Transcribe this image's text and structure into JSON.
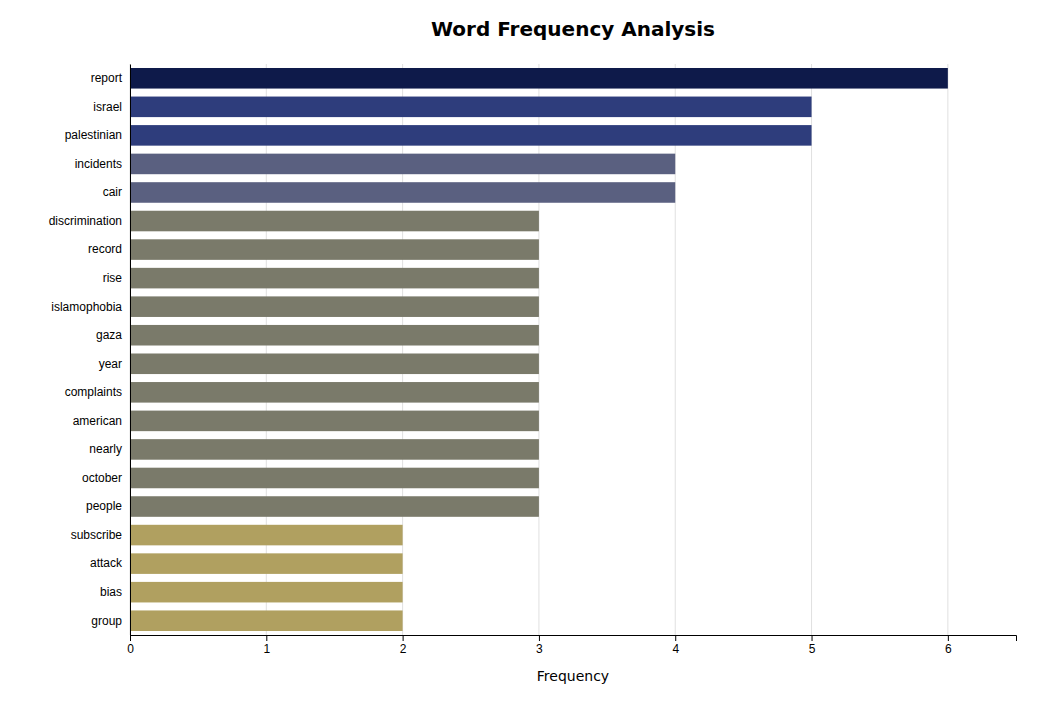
{
  "chart_data": {
    "type": "bar",
    "orientation": "horizontal",
    "title": "Word Frequency Analysis",
    "xlabel": "Frequency",
    "categories": [
      "group",
      "bias",
      "attack",
      "subscribe",
      "people",
      "october",
      "nearly",
      "american",
      "complaints",
      "year",
      "gaza",
      "islamophobia",
      "rise",
      "record",
      "discrimination",
      "cair",
      "incidents",
      "palestinian",
      "israel",
      "report"
    ],
    "values": [
      2,
      2,
      2,
      2,
      3,
      3,
      3,
      3,
      3,
      3,
      3,
      3,
      3,
      3,
      3,
      4,
      4,
      5,
      5,
      6
    ],
    "colors": [
      "#b0a060",
      "#b0a060",
      "#b0a060",
      "#b0a060",
      "#7a7a6a",
      "#7a7a6a",
      "#7a7a6a",
      "#7a7a6a",
      "#7a7a6a",
      "#7a7a6a",
      "#7a7a6a",
      "#7a7a6a",
      "#7a7a6a",
      "#7a7a6a",
      "#7a7a6a",
      "#5a6080",
      "#5a6080",
      "#2e3d7c",
      "#2e3d7c",
      "#0e1a4a"
    ],
    "xlim": [
      0,
      6.5
    ],
    "xticks": [
      0,
      1,
      2,
      3,
      4,
      5,
      6
    ],
    "grid": true
  }
}
